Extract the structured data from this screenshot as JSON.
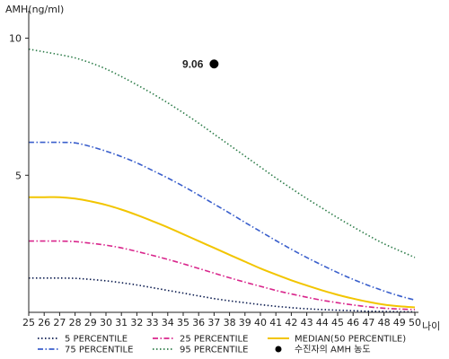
{
  "chart_data": {
    "type": "line",
    "ylabel": "AMH(ng/ml)",
    "xlabel": "나이",
    "x": [
      25,
      26,
      27,
      28,
      29,
      30,
      31,
      32,
      33,
      34,
      35,
      36,
      37,
      38,
      39,
      40,
      41,
      42,
      43,
      44,
      45,
      46,
      47,
      48,
      49,
      50
    ],
    "xlim": [
      25,
      50
    ],
    "ylim": [
      0,
      11
    ],
    "yticks": [
      5,
      10
    ],
    "grid": false,
    "legend_position": "bottom",
    "series": [
      {
        "name": "5 PERCENTILE",
        "color": "#0a1a4e",
        "dash": "dot",
        "values": [
          1.25,
          1.25,
          1.25,
          1.24,
          1.2,
          1.15,
          1.08,
          1.0,
          0.9,
          0.8,
          0.7,
          0.6,
          0.5,
          0.42,
          0.35,
          0.28,
          0.22,
          0.17,
          0.13,
          0.1,
          0.08,
          0.06,
          0.04,
          0.03,
          0.02,
          0.02
        ]
      },
      {
        "name": "25 PERCENTILE",
        "color": "#d9268c",
        "dash": "dashdot",
        "values": [
          2.6,
          2.6,
          2.6,
          2.58,
          2.52,
          2.45,
          2.35,
          2.22,
          2.08,
          1.93,
          1.77,
          1.6,
          1.43,
          1.26,
          1.1,
          0.95,
          0.8,
          0.67,
          0.55,
          0.44,
          0.35,
          0.27,
          0.2,
          0.15,
          0.12,
          0.1
        ]
      },
      {
        "name": "MEDIAN(50 PERCENTILE)",
        "color": "#f2c500",
        "dash": "solid",
        "values": [
          4.2,
          4.2,
          4.2,
          4.15,
          4.05,
          3.92,
          3.75,
          3.55,
          3.33,
          3.1,
          2.85,
          2.6,
          2.35,
          2.1,
          1.85,
          1.6,
          1.38,
          1.17,
          0.98,
          0.8,
          0.64,
          0.5,
          0.38,
          0.28,
          0.22,
          0.18
        ]
      },
      {
        "name": "75 PERCENTILE",
        "color": "#3a5fcc",
        "dash": "dashdot",
        "values": [
          6.2,
          6.2,
          6.2,
          6.18,
          6.05,
          5.88,
          5.68,
          5.45,
          5.18,
          4.9,
          4.6,
          4.28,
          3.95,
          3.62,
          3.28,
          2.95,
          2.62,
          2.3,
          2.0,
          1.72,
          1.45,
          1.2,
          0.98,
          0.78,
          0.6,
          0.45
        ]
      },
      {
        "name": "95 PERCENTILE",
        "color": "#2e7d4a",
        "dash": "dot",
        "values": [
          9.6,
          9.5,
          9.4,
          9.28,
          9.1,
          8.88,
          8.6,
          8.3,
          7.98,
          7.64,
          7.28,
          6.9,
          6.5,
          6.1,
          5.7,
          5.3,
          4.9,
          4.52,
          4.15,
          3.8,
          3.45,
          3.12,
          2.8,
          2.5,
          2.25,
          2.0
        ]
      }
    ],
    "marker": {
      "name": "수진자의 AMH 농도",
      "x": 37,
      "y": 9.06,
      "label": "9.06",
      "color": "#000000"
    }
  }
}
